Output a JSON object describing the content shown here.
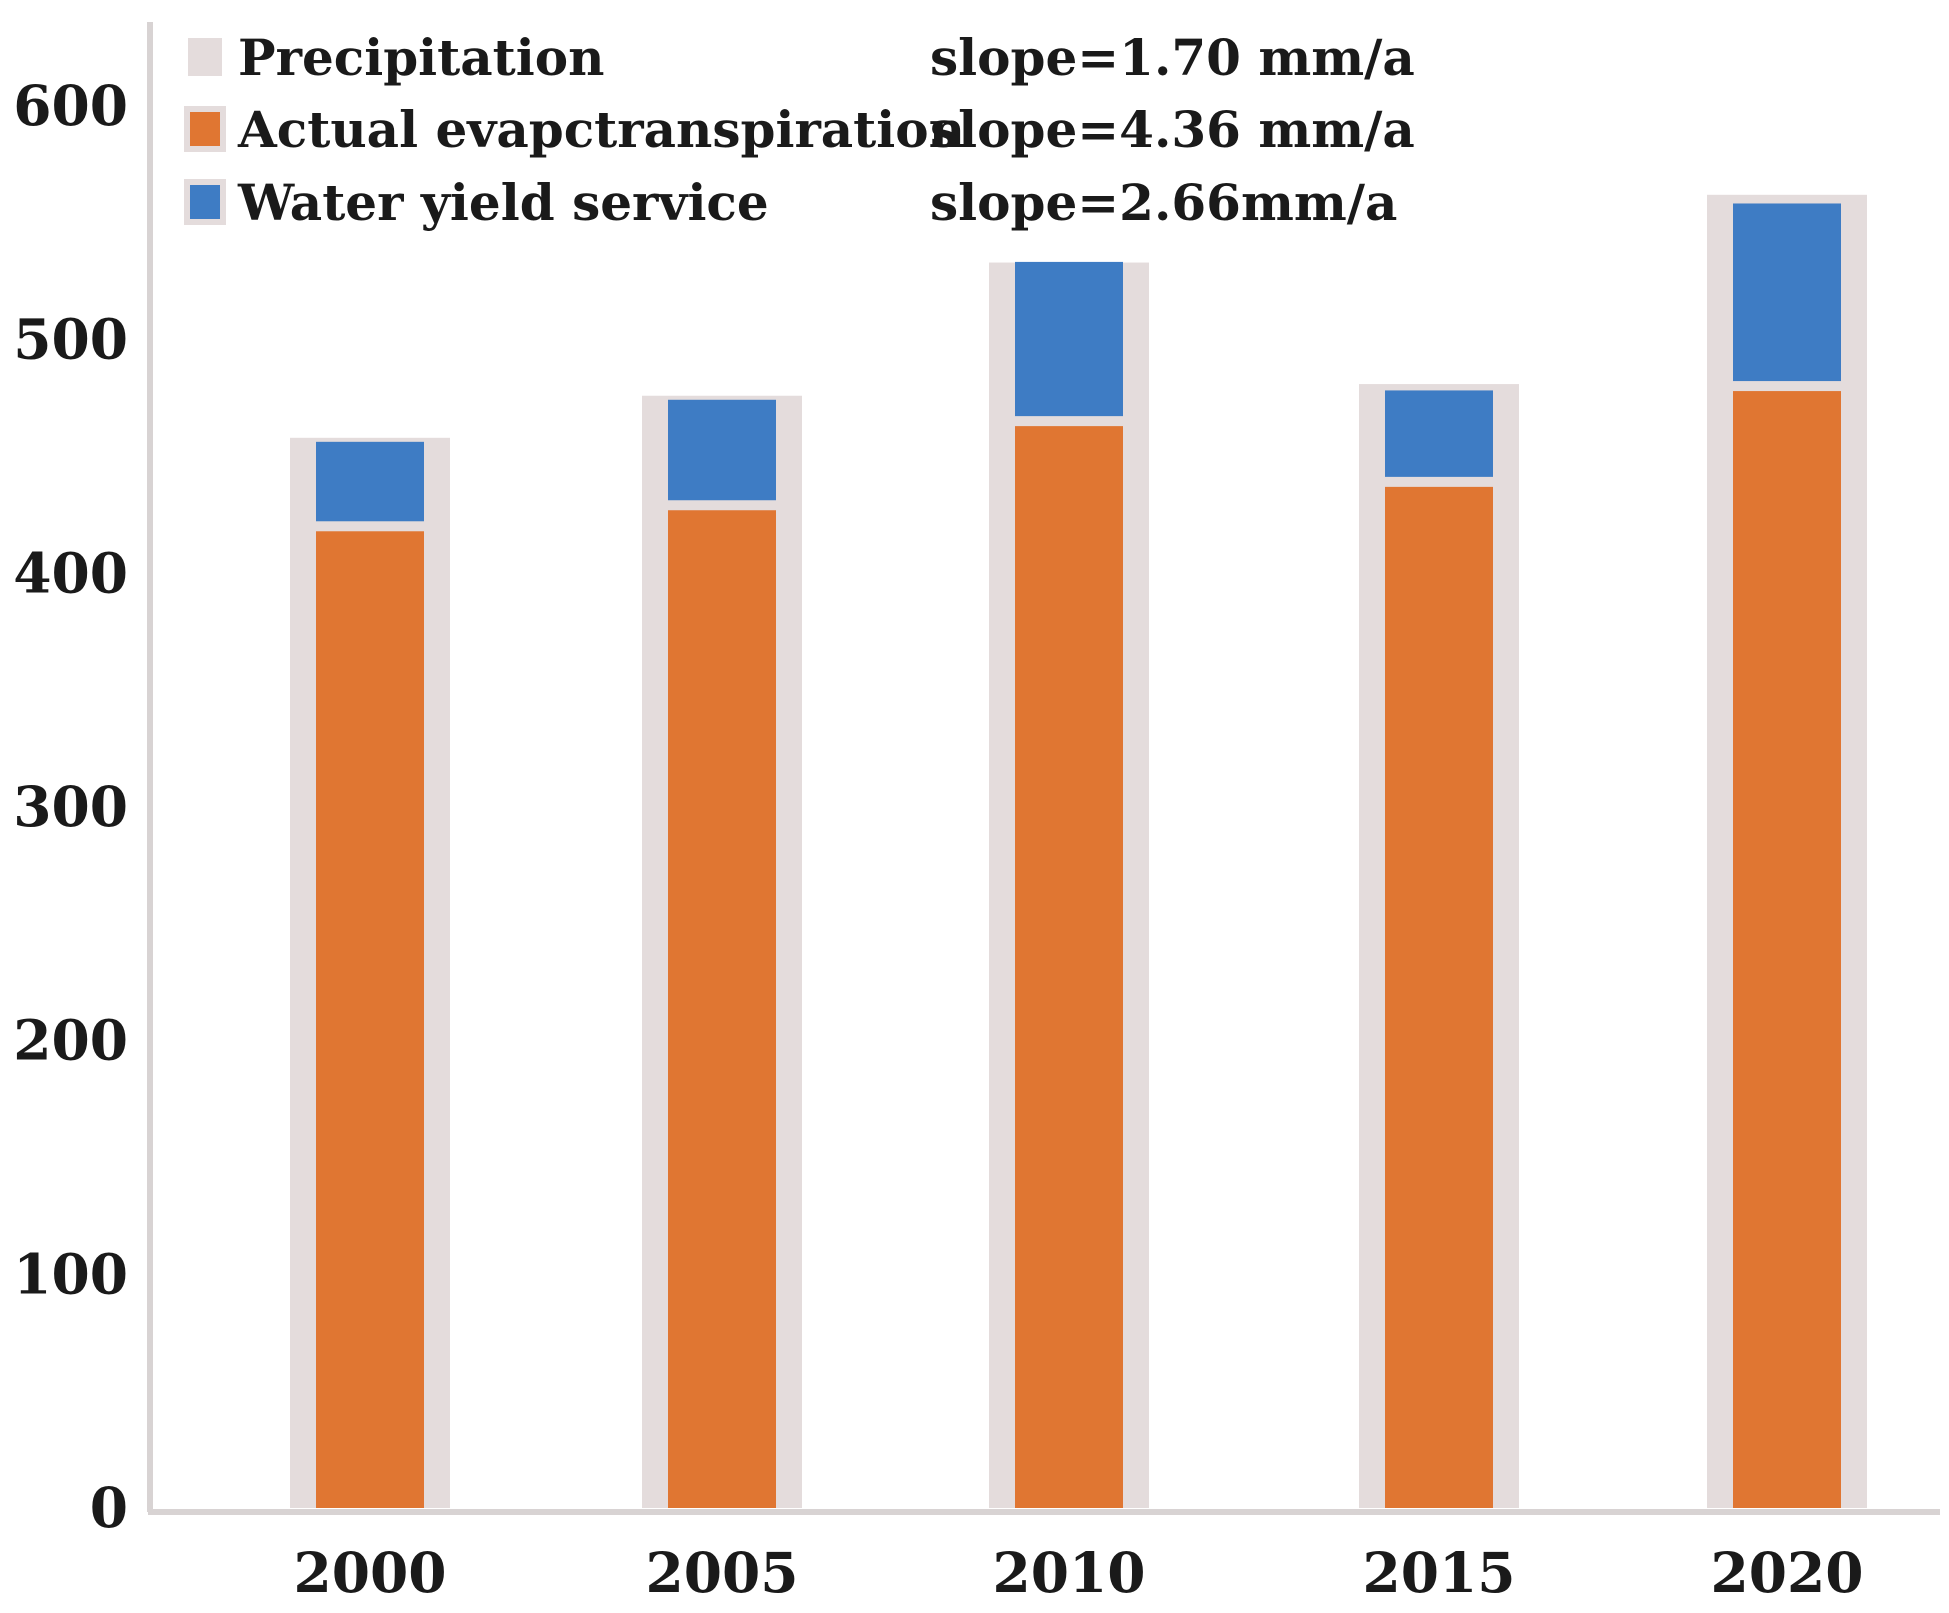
{
  "chart_data": {
    "type": "bar",
    "categories": [
      "2000",
      "2005",
      "2010",
      "2015",
      "2020"
    ],
    "series": [
      {
        "name": "Precipitation",
        "values": [
          458,
          476,
          533,
          481,
          562
        ],
        "color": "#e4dcdc"
      },
      {
        "name": "Actual evapctranspiration",
        "values": [
          418,
          427,
          463,
          437,
          478
        ],
        "color": "#e07632"
      },
      {
        "name": "Water yield service",
        "values": [
          34,
          43,
          66,
          37,
          76
        ],
        "color": "#3e7cc4"
      }
    ],
    "annotations": [
      "slope=1.70 mm/a",
      "slope=4.36 mm/a",
      "slope=2.66mm/a"
    ],
    "title": "",
    "xlabel": "",
    "ylabel": "",
    "ylim": [
      0,
      600
    ],
    "yticks": [
      "0",
      "100",
      "200",
      "300",
      "400",
      "500",
      "600"
    ],
    "grid": false,
    "legend_position": "top-left"
  }
}
